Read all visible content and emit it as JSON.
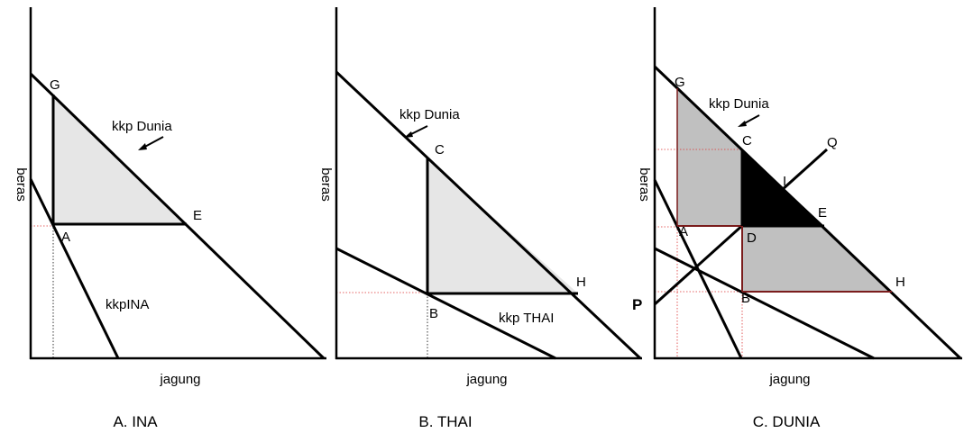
{
  "panels": [
    {
      "caption": "A.  INA",
      "xlabel": "jagung",
      "ylabel": "beras",
      "labels": {
        "G": "G",
        "A": "A",
        "E": "E",
        "world": "kkp Dunia",
        "country": "kkpINA"
      }
    },
    {
      "caption": "B.  THAI",
      "xlabel": "jagung",
      "ylabel": "beras",
      "labels": {
        "C": "C",
        "B": "B",
        "H": "H",
        "world": "kkp Dunia",
        "country": "kkp THAI"
      }
    },
    {
      "caption": "C. DUNIA",
      "xlabel": "jagung",
      "ylabel": "beras",
      "labels": {
        "G": "G",
        "C": "C",
        "A": "A",
        "D": "D",
        "E": "E",
        "H": "H",
        "B": "B",
        "I": "I",
        "P": "P",
        "Q": "Q",
        "world": "kkp Dunia"
      }
    }
  ],
  "colors": {
    "light_fill": "#e6e6e6",
    "mid_fill": "#c0c0c0",
    "dark_fill": "#000000",
    "guide_red": "#dd3333",
    "box_border": "#7a1c1c"
  }
}
